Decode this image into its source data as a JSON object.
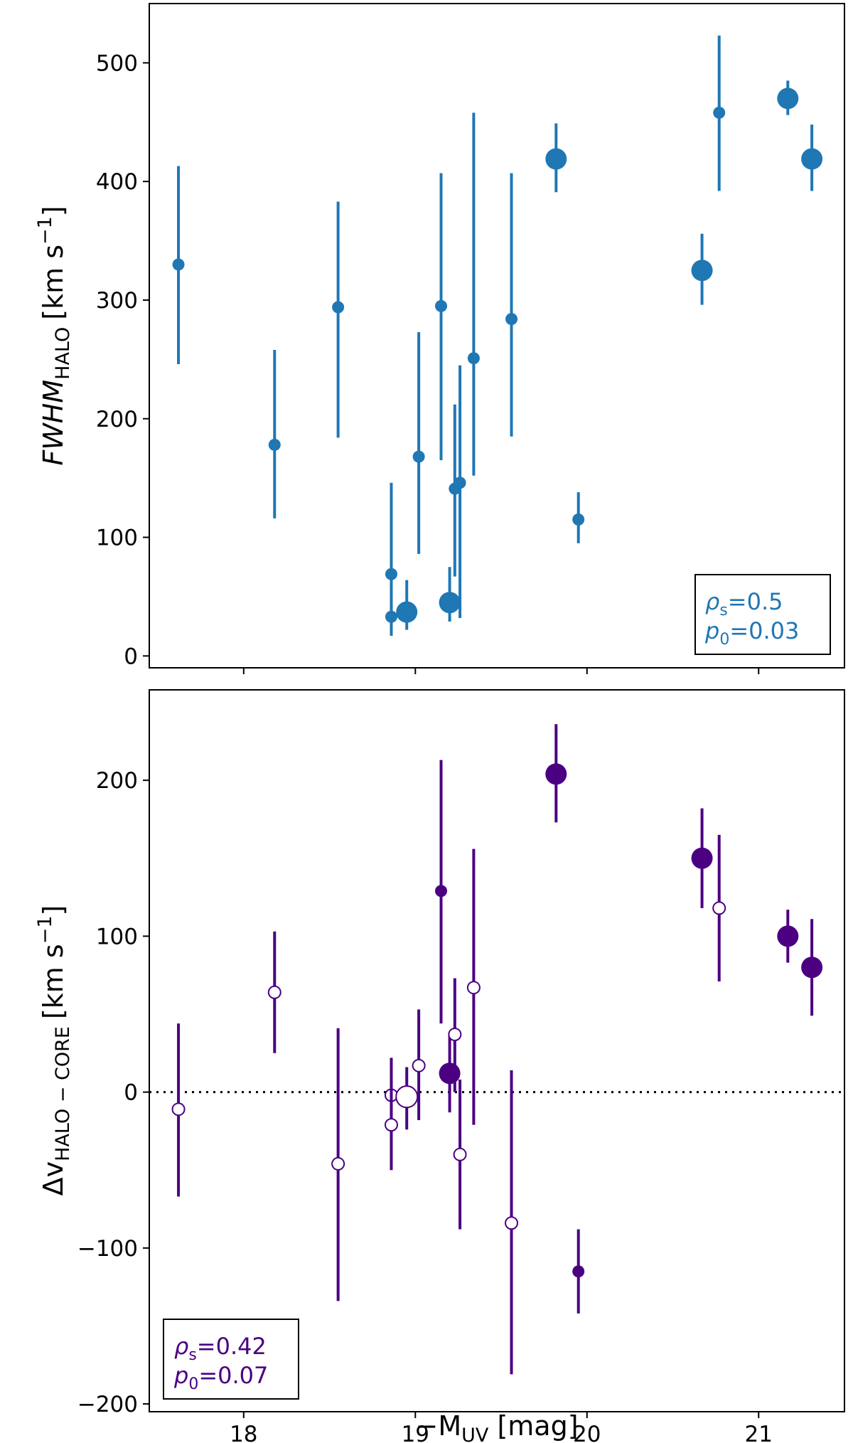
{
  "chart_data": [
    {
      "type": "scatter",
      "panel": "top",
      "ylabel": {
        "main": "FWHM",
        "sub": "HALO",
        "unit": "[km s",
        "exp": "−1",
        "close": "]"
      },
      "ylim": [
        -10,
        550
      ],
      "yticks": [
        0,
        100,
        200,
        300,
        400,
        500
      ],
      "xlim": [
        17.45,
        21.5
      ],
      "color": "#1f77b4",
      "stats": {
        "rho_sym": "ρ",
        "rho_sub": "s",
        "rho_val": "=0.5",
        "p_sym": "p",
        "p_sub": "0",
        "p_val": "=0.03"
      },
      "points": [
        {
          "x": 17.62,
          "y": 330,
          "ylo": 246,
          "yhi": 413,
          "size": "small"
        },
        {
          "x": 18.18,
          "y": 178,
          "ylo": 116,
          "yhi": 258,
          "size": "small"
        },
        {
          "x": 18.55,
          "y": 294,
          "ylo": 184,
          "yhi": 383,
          "size": "small"
        },
        {
          "x": 18.86,
          "y": 69,
          "ylo": 22,
          "yhi": 146,
          "size": "small"
        },
        {
          "x": 18.86,
          "y": 33,
          "ylo": 17,
          "yhi": 50,
          "size": "small"
        },
        {
          "x": 18.95,
          "y": 37,
          "ylo": 22,
          "yhi": 64,
          "size": "large"
        },
        {
          "x": 19.02,
          "y": 168,
          "ylo": 86,
          "yhi": 273,
          "size": "small"
        },
        {
          "x": 19.15,
          "y": 295,
          "ylo": 165,
          "yhi": 407,
          "size": "small"
        },
        {
          "x": 19.2,
          "y": 45,
          "ylo": 29,
          "yhi": 75,
          "size": "large"
        },
        {
          "x": 19.23,
          "y": 141,
          "ylo": 67,
          "yhi": 212,
          "size": "small"
        },
        {
          "x": 19.26,
          "y": 146,
          "ylo": 32,
          "yhi": 245,
          "size": "small"
        },
        {
          "x": 19.34,
          "y": 251,
          "ylo": 152,
          "yhi": 458,
          "size": "small"
        },
        {
          "x": 19.56,
          "y": 284,
          "ylo": 185,
          "yhi": 407,
          "size": "small"
        },
        {
          "x": 19.82,
          "y": 419,
          "ylo": 391,
          "yhi": 449,
          "size": "large"
        },
        {
          "x": 19.95,
          "y": 115,
          "ylo": 95,
          "yhi": 138,
          "size": "small"
        },
        {
          "x": 20.67,
          "y": 325,
          "ylo": 296,
          "yhi": 356,
          "size": "large"
        },
        {
          "x": 20.77,
          "y": 458,
          "ylo": 392,
          "yhi": 523,
          "size": "small"
        },
        {
          "x": 21.17,
          "y": 470,
          "ylo": 456,
          "yhi": 485,
          "size": "large"
        },
        {
          "x": 21.31,
          "y": 419,
          "ylo": 392,
          "yhi": 448,
          "size": "large"
        }
      ]
    },
    {
      "type": "scatter",
      "panel": "bottom",
      "ylabel": {
        "main": "Δv",
        "sub": "HALO − CORE",
        "unit": "[km s",
        "exp": "−1",
        "close": "]"
      },
      "ylim": [
        -205,
        258
      ],
      "yticks": [
        -200,
        -100,
        0,
        100,
        200
      ],
      "xlim": [
        17.45,
        21.5
      ],
      "xticks": [
        18,
        19,
        20,
        21
      ],
      "xlabel": {
        "pre": "−M",
        "sub": "UV",
        "post": " [mag]"
      },
      "reference_line": 0,
      "color": "#4b0082",
      "stats": {
        "rho_sym": "ρ",
        "rho_sub": "s",
        "rho_val": "=0.42",
        "p_sym": "p",
        "p_sub": "0",
        "p_val": "=0.07"
      },
      "points": [
        {
          "x": 17.62,
          "y": -11,
          "ylo": -67,
          "yhi": 44,
          "size": "small",
          "filled": false
        },
        {
          "x": 18.18,
          "y": 64,
          "ylo": 25,
          "yhi": 103,
          "size": "small",
          "filled": false
        },
        {
          "x": 18.55,
          "y": -46,
          "ylo": -134,
          "yhi": 41,
          "size": "small",
          "filled": false
        },
        {
          "x": 18.86,
          "y": -2,
          "ylo": -24,
          "yhi": 22,
          "size": "small",
          "filled": false
        },
        {
          "x": 18.86,
          "y": -21,
          "ylo": -50,
          "yhi": 6,
          "size": "small",
          "filled": false
        },
        {
          "x": 18.95,
          "y": -3,
          "ylo": -24,
          "yhi": 16,
          "size": "large",
          "filled": false
        },
        {
          "x": 19.02,
          "y": 17,
          "ylo": -18,
          "yhi": 53,
          "size": "small",
          "filled": false
        },
        {
          "x": 19.15,
          "y": 129,
          "ylo": 44,
          "yhi": 213,
          "size": "small",
          "filled": true
        },
        {
          "x": 19.2,
          "y": 12,
          "ylo": -13,
          "yhi": 36,
          "size": "large",
          "filled": true
        },
        {
          "x": 19.23,
          "y": 37,
          "ylo": 0,
          "yhi": 73,
          "size": "small",
          "filled": false
        },
        {
          "x": 19.26,
          "y": -40,
          "ylo": -88,
          "yhi": 8,
          "size": "small",
          "filled": false
        },
        {
          "x": 19.34,
          "y": 67,
          "ylo": -21,
          "yhi": 156,
          "size": "small",
          "filled": false
        },
        {
          "x": 19.56,
          "y": -84,
          "ylo": -181,
          "yhi": 14,
          "size": "small",
          "filled": false
        },
        {
          "x": 19.82,
          "y": 204,
          "ylo": 173,
          "yhi": 236,
          "size": "large",
          "filled": true
        },
        {
          "x": 19.95,
          "y": -115,
          "ylo": -142,
          "yhi": -88,
          "size": "small",
          "filled": true
        },
        {
          "x": 20.67,
          "y": 150,
          "ylo": 118,
          "yhi": 182,
          "size": "large",
          "filled": true
        },
        {
          "x": 20.77,
          "y": 118,
          "ylo": 71,
          "yhi": 165,
          "size": "small",
          "filled": false
        },
        {
          "x": 21.17,
          "y": 100,
          "ylo": 83,
          "yhi": 117,
          "size": "large",
          "filled": true
        },
        {
          "x": 21.31,
          "y": 80,
          "ylo": 49,
          "yhi": 111,
          "size": "large",
          "filled": true
        }
      ]
    }
  ]
}
